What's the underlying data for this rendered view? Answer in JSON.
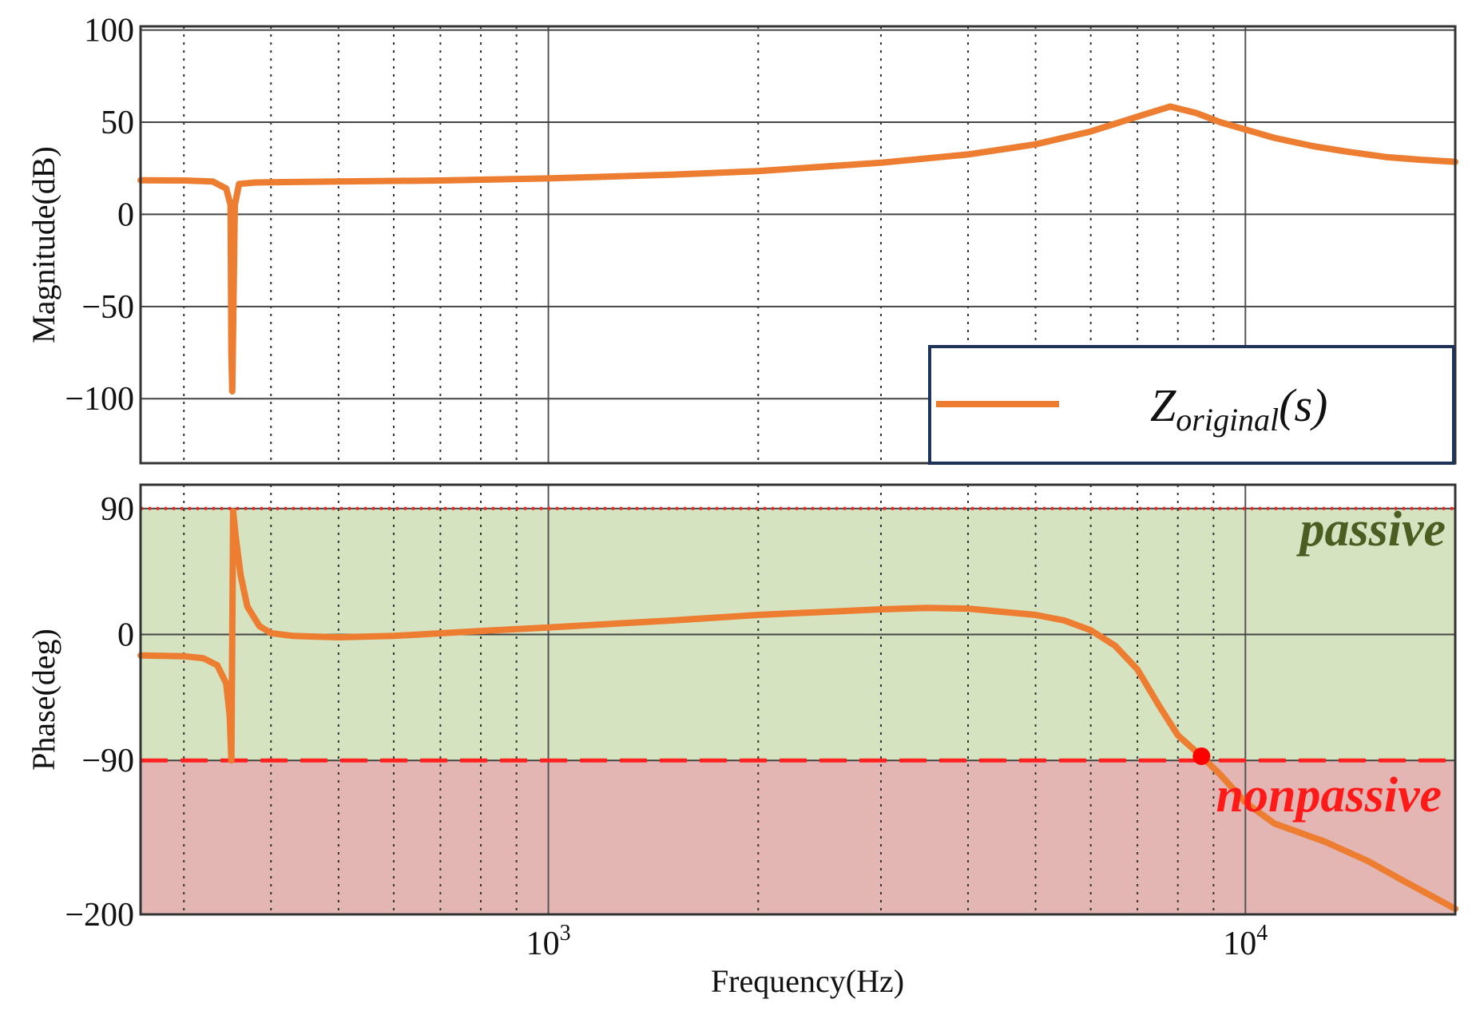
{
  "chart_data": [
    {
      "type": "line",
      "panel": "magnitude",
      "ylabel": "Magnitude(dB)",
      "xlabel": "",
      "xscale": "log",
      "xlim": [
        260,
        20000
      ],
      "ylim": [
        -135,
        102
      ],
      "yticks": [
        100,
        50,
        0,
        -50,
        -100
      ],
      "ytick_labels": [
        "100",
        "50",
        "0",
        "−50",
        "−100"
      ],
      "grid": true,
      "legend": {
        "placement": "bottom-right",
        "entries": [
          {
            "base": "Z",
            "sub": "original",
            "tail": "(s)"
          }
        ]
      },
      "series": [
        {
          "color": "#ED7D31",
          "x": [
            260,
            300,
            330,
            345,
            350,
            351,
            352,
            355,
            360,
            380,
            420,
            500,
            700,
            1000,
            1500,
            2000,
            3000,
            4000,
            5000,
            6000,
            7000,
            7800,
            8500,
            9200,
            10000,
            11000,
            12500,
            14000,
            16000,
            18000,
            20000
          ],
          "y": [
            18.5,
            18.4,
            17.8,
            14,
            5,
            -75,
            -96,
            5,
            16.5,
            17.3,
            17.5,
            17.8,
            18.4,
            19.5,
            21.5,
            23.5,
            28,
            32.5,
            38,
            45,
            53,
            58.5,
            55,
            50,
            46,
            41.5,
            37,
            34,
            31,
            29.5,
            28.5
          ]
        }
      ]
    },
    {
      "type": "line",
      "panel": "phase",
      "ylabel": "Phase(deg)",
      "xlabel": "Frequency(Hz)",
      "xscale": "log",
      "xlim": [
        260,
        20000
      ],
      "ylim": [
        -200,
        107
      ],
      "yticks": [
        90,
        0,
        -90,
        -200
      ],
      "ytick_labels": [
        "90",
        "0",
        "−90",
        "−200"
      ],
      "xtick_labels": [
        {
          "base": "10",
          "exp": "3",
          "value": 1000
        },
        {
          "base": "10",
          "exp": "4",
          "value": 10000
        }
      ],
      "grid": true,
      "reference_lines": {
        "upper": 90,
        "lower": -90
      },
      "regions": [
        {
          "label": "passive",
          "from": -90,
          "to": 90,
          "color": "#D6E3C0",
          "text_color": "#4A5E22"
        },
        {
          "label": "nonpassive",
          "from": -200,
          "to": -90,
          "color": "#E3B6B4",
          "text_color": "#FF1A1A"
        }
      ],
      "marker": {
        "x": 8650,
        "y": -87,
        "color": "#FF0000"
      },
      "series": [
        {
          "color": "#ED7D31",
          "x": [
            260,
            300,
            320,
            335,
            345,
            349,
            351,
            353,
            356,
            362,
            370,
            385,
            400,
            430,
            500,
            600,
            800,
            1000,
            1500,
            2000,
            3000,
            3500,
            4000,
            5000,
            5500,
            6000,
            6500,
            7000,
            7500,
            8000,
            8650,
            9200,
            10000,
            11000,
            13000,
            15000,
            17000,
            20000
          ],
          "y": [
            -15,
            -15.5,
            -17,
            -22,
            -35,
            -58,
            -90,
            88,
            70,
            42,
            20,
            6,
            1,
            -1,
            -2,
            -1,
            2.5,
            5,
            10,
            14,
            18,
            19,
            18.5,
            14,
            10,
            3,
            -8,
            -25,
            -50,
            -72,
            -87,
            -100,
            -120,
            -135,
            -148,
            -162,
            -177,
            -196
          ]
        }
      ]
    }
  ]
}
